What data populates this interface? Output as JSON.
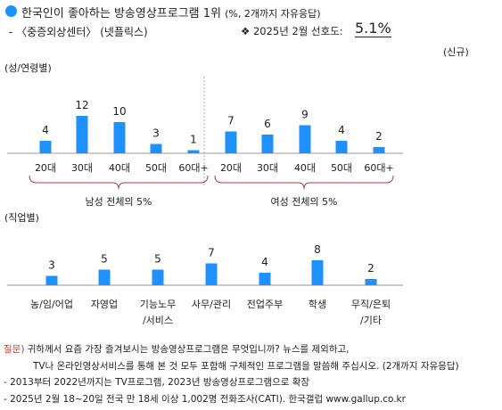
{
  "header": {
    "title": "한국인이 좋아하는 방송영상프로그램 1위",
    "title_unit": "(%, 2개까지 자유응답)",
    "subtitle": "- 〈중증외상센터〉 (넷플릭스)",
    "preference_label": "❖ 2025년 2월 선호도:",
    "preference_value": "5.1%",
    "new_tag": "(신규)"
  },
  "chart_data": [
    {
      "type": "bar",
      "section_label": "(성/연령별)",
      "color": "#1e90ff",
      "groups": [
        {
          "name": "남성 전체의 5%",
          "categories": [
            "20대",
            "30대",
            "40대",
            "50대",
            "60대+"
          ],
          "values": [
            4,
            12,
            10,
            3,
            1
          ]
        },
        {
          "name": "여성 전체의 5%",
          "categories": [
            "20대",
            "30대",
            "40대",
            "50대",
            "60대+"
          ],
          "values": [
            7,
            6,
            9,
            4,
            2
          ]
        }
      ]
    },
    {
      "type": "bar",
      "section_label": "(직업별)",
      "color": "#1e90ff",
      "categories": [
        [
          "농/임/어업"
        ],
        [
          "자영업"
        ],
        [
          "기능노무",
          "/서비스"
        ],
        [
          "사무/관리"
        ],
        [
          "전업주부"
        ],
        [
          "학생"
        ],
        [
          "무직/은퇴",
          "/기타"
        ]
      ],
      "values": [
        3,
        5,
        5,
        7,
        4,
        8,
        2
      ]
    }
  ],
  "notes": {
    "q_label": "질문)",
    "q_line1": "귀하께서 요즘 가장 즐겨보시는 방송영상프로그램은 무엇입니까? 뉴스를 제외하고,",
    "q_line2": "TV나 온라인영상서비스를 통해 본 것 모두 포함해 구체적인 프로그램을 말씀해 주십시오. (2개까지 자유응답)",
    "line3": "- 2013부터 2022년까지는 TV프로그램, 2023년 방송영상프로그램으로 확장",
    "line4": "- 2025년 2월 18~20일 전국 만 18세 이상 1,002명 전화조사(CATI). 한국갤럽 www.gallup.co.kr"
  }
}
